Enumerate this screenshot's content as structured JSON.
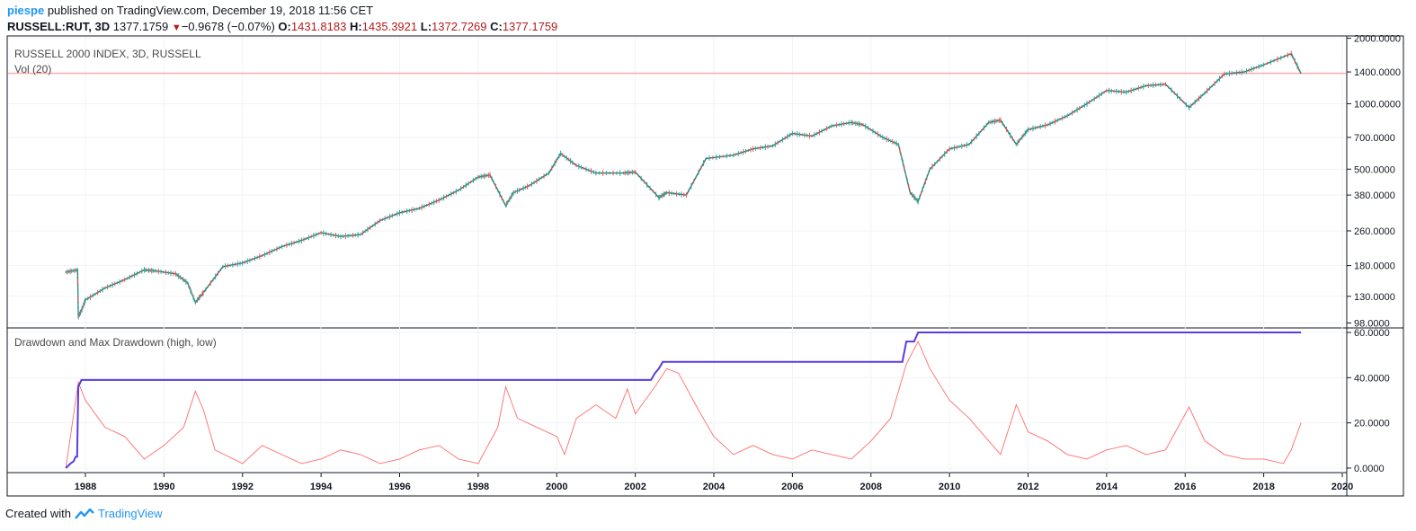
{
  "header": {
    "user": "piespe",
    "published_text": "published on TradingView.com, December 19, 2018 11:56 CET",
    "symbol": "RUSSELL:RUT, 3D",
    "last": "1377.1759",
    "change": "−0.9678 (−0.07%)",
    "open_label": "O:",
    "open": "1431.8183",
    "high_label": "H:",
    "high": "1435.3921",
    "low_label": "L:",
    "low": "1372.7269",
    "close_label": "C:",
    "close": "1377.1759"
  },
  "footer": {
    "created_with": "Created with",
    "brand": "TradingView"
  },
  "colors": {
    "price_line": "#ff8a8a",
    "max_drawdown": "#5b3be0",
    "drawdown": "#ff5252",
    "up": "#26a69a",
    "down": "#ef5350"
  },
  "chart_data": [
    {
      "type": "line",
      "title": "RUSSELL 2000 INDEX, 3D, RUSSELL",
      "subtitle": "Vol (20)",
      "y_scale": "log",
      "ylim": [
        93,
        2050
      ],
      "y_ticks": [
        "2000.0000",
        "1400.0000",
        "1000.0000",
        "700.0000",
        "500.0000",
        "380.0000",
        "260.0000",
        "180.0000",
        "130.0000",
        "98.0000"
      ],
      "price_line_label": "1377.1759",
      "x_ticks": [
        "1988",
        "1990",
        "1992",
        "1994",
        "1996",
        "1998",
        "2000",
        "2002",
        "2004",
        "2006",
        "2008",
        "2010",
        "2012",
        "2014",
        "2016",
        "2018",
        "2020"
      ],
      "series": [
        {
          "x": [
            1987.5,
            1987.8,
            1987.82,
            1987.9,
            1988.0,
            1988.5,
            1989.0,
            1989.5,
            1989.8,
            1990.3,
            1990.6,
            1990.8,
            1991.0,
            1991.5,
            1992.0,
            1992.5,
            1993.0,
            1993.5,
            1994.0,
            1994.5,
            1995.0,
            1995.5,
            1996.0,
            1996.5,
            1997.0,
            1997.5,
            1998.0,
            1998.3,
            1998.7,
            1998.9,
            1999.3,
            1999.8,
            2000.1,
            2000.5,
            2001.0,
            2001.7,
            2002.0,
            2002.6,
            2002.8,
            2003.3,
            2003.8,
            2004.5,
            2005.0,
            2005.5,
            2006.0,
            2006.5,
            2007.0,
            2007.5,
            2007.8,
            2008.3,
            2008.7,
            2009.0,
            2009.2,
            2009.5,
            2010.0,
            2010.5,
            2011.0,
            2011.3,
            2011.7,
            2012.0,
            2012.5,
            2013.0,
            2013.5,
            2014.0,
            2014.5,
            2015.0,
            2015.5,
            2016.1,
            2016.5,
            2017.0,
            2017.5,
            2018.0,
            2018.7,
            2018.95
          ],
          "y": [
            168,
            172,
            105,
            112,
            125,
            142,
            155,
            172,
            170,
            165,
            150,
            122,
            135,
            178,
            185,
            200,
            220,
            235,
            255,
            245,
            250,
            290,
            315,
            330,
            360,
            400,
            460,
            470,
            340,
            390,
            420,
            480,
            590,
            520,
            480,
            480,
            485,
            370,
            390,
            380,
            560,
            580,
            620,
            640,
            730,
            710,
            790,
            820,
            800,
            700,
            650,
            390,
            355,
            500,
            620,
            650,
            820,
            840,
            650,
            760,
            800,
            880,
            1000,
            1150,
            1130,
            1210,
            1230,
            960,
            1120,
            1370,
            1400,
            1510,
            1700,
            1377
          ]
        }
      ]
    },
    {
      "type": "line",
      "title": "Drawdown and Max Drawdown (high, low)",
      "ylim": [
        -2,
        62
      ],
      "y_ticks": [
        "60.0000",
        "40.0000",
        "20.0000",
        "0.0000"
      ],
      "x_ticks": [
        "1988",
        "1990",
        "1992",
        "1994",
        "1996",
        "1998",
        "2000",
        "2002",
        "2004",
        "2006",
        "2008",
        "2010",
        "2012",
        "2014",
        "2016",
        "2018",
        "2020"
      ],
      "series": [
        {
          "name": "Max Drawdown",
          "x": [
            1987.5,
            1987.62,
            1987.7,
            1987.75,
            1987.79,
            1987.82,
            1987.9,
            2002.4,
            2002.5,
            2002.6,
            2002.7,
            2008.8,
            2008.9,
            2009.1,
            2009.2,
            2018.95
          ],
          "y": [
            0,
            2,
            3,
            5,
            5,
            36,
            39,
            39,
            42,
            44,
            47,
            47,
            56,
            56,
            60,
            60
          ]
        },
        {
          "name": "Drawdown",
          "x": [
            1987.5,
            1987.82,
            1988.0,
            1988.5,
            1989.0,
            1989.5,
            1990.0,
            1990.5,
            1990.8,
            1991.0,
            1991.3,
            1992.0,
            1992.5,
            1993.0,
            1993.5,
            1994.0,
            1994.5,
            1995.0,
            1995.5,
            1996.0,
            1996.5,
            1997.0,
            1997.5,
            1998.0,
            1998.5,
            1998.7,
            1999.0,
            1999.5,
            2000.0,
            2000.2,
            2000.5,
            2001.0,
            2001.5,
            2001.8,
            2002.0,
            2002.5,
            2002.8,
            2003.1,
            2003.6,
            2004.0,
            2004.5,
            2005.0,
            2005.5,
            2006.0,
            2006.5,
            2007.0,
            2007.5,
            2008.0,
            2008.5,
            2008.9,
            2009.2,
            2009.5,
            2010.0,
            2010.5,
            2011.0,
            2011.3,
            2011.7,
            2012.0,
            2012.5,
            2013.0,
            2013.5,
            2014.0,
            2014.5,
            2015.0,
            2015.5,
            2016.1,
            2016.5,
            2017.0,
            2017.5,
            2018.0,
            2018.5,
            2018.7,
            2018.95
          ],
          "y": [
            0,
            38,
            30,
            18,
            14,
            4,
            10,
            18,
            34,
            26,
            8,
            2,
            10,
            6,
            2,
            4,
            8,
            6,
            2,
            4,
            8,
            10,
            4,
            2,
            18,
            36,
            22,
            18,
            14,
            6,
            22,
            28,
            22,
            35,
            24,
            36,
            44,
            42,
            26,
            14,
            6,
            10,
            6,
            4,
            8,
            6,
            4,
            12,
            22,
            46,
            56,
            44,
            30,
            22,
            12,
            6,
            28,
            16,
            12,
            6,
            4,
            8,
            10,
            6,
            8,
            27,
            12,
            6,
            4,
            4,
            2,
            8,
            20
          ]
        }
      ]
    }
  ]
}
